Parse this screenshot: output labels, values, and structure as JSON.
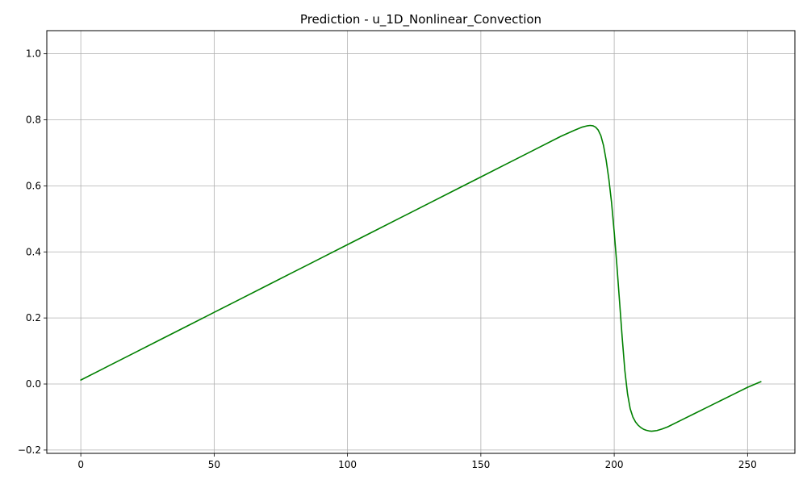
{
  "chart_data": {
    "type": "line",
    "title": "Prediction - u_1D_Nonlinear_Convection",
    "xlabel": "",
    "ylabel": "",
    "xlim": [
      -12.75,
      267.75
    ],
    "ylim": [
      -0.21,
      1.07
    ],
    "x_ticks": [
      0,
      50,
      100,
      150,
      200,
      250
    ],
    "y_ticks": [
      -0.2,
      0.0,
      0.2,
      0.4,
      0.6,
      0.8,
      1.0
    ],
    "x_tick_labels": [
      "0",
      "50",
      "100",
      "150",
      "200",
      "250"
    ],
    "y_tick_labels": [
      "−0.2",
      "0.0",
      "0.2",
      "0.4",
      "0.6",
      "0.8",
      "1.0"
    ],
    "grid": true,
    "line_color": "#008000",
    "series": [
      {
        "x": [
          0,
          10,
          20,
          30,
          40,
          50,
          60,
          70,
          80,
          90,
          100,
          110,
          120,
          130,
          140,
          150,
          160,
          170,
          180,
          185,
          188,
          190,
          191,
          192,
          193,
          194,
          195,
          196,
          197,
          198,
          199,
          200,
          201,
          202,
          203,
          204,
          205,
          206,
          207,
          208,
          209,
          210,
          211,
          212,
          213,
          214,
          215,
          216,
          218,
          220,
          225,
          230,
          235,
          240,
          245,
          250,
          255
        ],
        "y": [
          0.012,
          0.053,
          0.094,
          0.135,
          0.176,
          0.217,
          0.258,
          0.299,
          0.34,
          0.381,
          0.422,
          0.463,
          0.504,
          0.545,
          0.586,
          0.627,
          0.668,
          0.709,
          0.75,
          0.768,
          0.778,
          0.782,
          0.783,
          0.782,
          0.778,
          0.769,
          0.752,
          0.722,
          0.677,
          0.62,
          0.55,
          0.46,
          0.36,
          0.25,
          0.14,
          0.04,
          -0.03,
          -0.075,
          -0.1,
          -0.115,
          -0.125,
          -0.132,
          -0.137,
          -0.14,
          -0.142,
          -0.143,
          -0.142,
          -0.141,
          -0.136,
          -0.13,
          -0.11,
          -0.09,
          -0.07,
          -0.05,
          -0.03,
          -0.01,
          0.007
        ]
      }
    ]
  }
}
